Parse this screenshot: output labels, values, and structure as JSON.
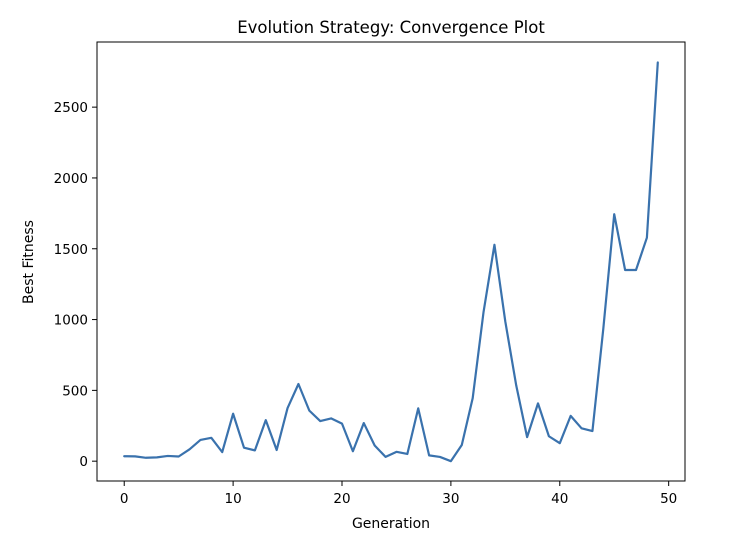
{
  "chart_data": {
    "type": "line",
    "title": "Evolution Strategy: Convergence Plot",
    "xlabel": "Generation",
    "ylabel": "Best Fitness",
    "xlim": [
      -2.5,
      51.5
    ],
    "ylim": [
      -140,
      2960
    ],
    "xticks": [
      0,
      10,
      20,
      30,
      40,
      50
    ],
    "yticks": [
      0,
      500,
      1000,
      1500,
      2000,
      2500
    ],
    "grid": false,
    "series": [
      {
        "color": "#3a72ad",
        "x": [
          0,
          1,
          2,
          3,
          4,
          5,
          6,
          7,
          8,
          9,
          10,
          11,
          12,
          13,
          14,
          15,
          16,
          17,
          18,
          19,
          20,
          21,
          22,
          23,
          24,
          25,
          26,
          27,
          28,
          29,
          30,
          31,
          32,
          33,
          34,
          35,
          36,
          37,
          38,
          39,
          40,
          41,
          42,
          43,
          44,
          45,
          46,
          47,
          48,
          49
        ],
        "y": [
          35,
          34,
          24,
          27,
          37,
          33,
          84,
          150,
          165,
          64,
          335,
          95,
          76,
          290,
          79,
          375,
          545,
          357,
          283,
          302,
          265,
          70,
          269,
          111,
          30,
          66,
          51,
          373,
          41,
          30,
          0,
          114,
          444,
          1054,
          1528,
          985,
          535,
          170,
          408,
          176,
          127,
          320,
          232,
          213,
          937,
          1744,
          1350,
          1350,
          1578,
          2815
        ]
      }
    ]
  }
}
